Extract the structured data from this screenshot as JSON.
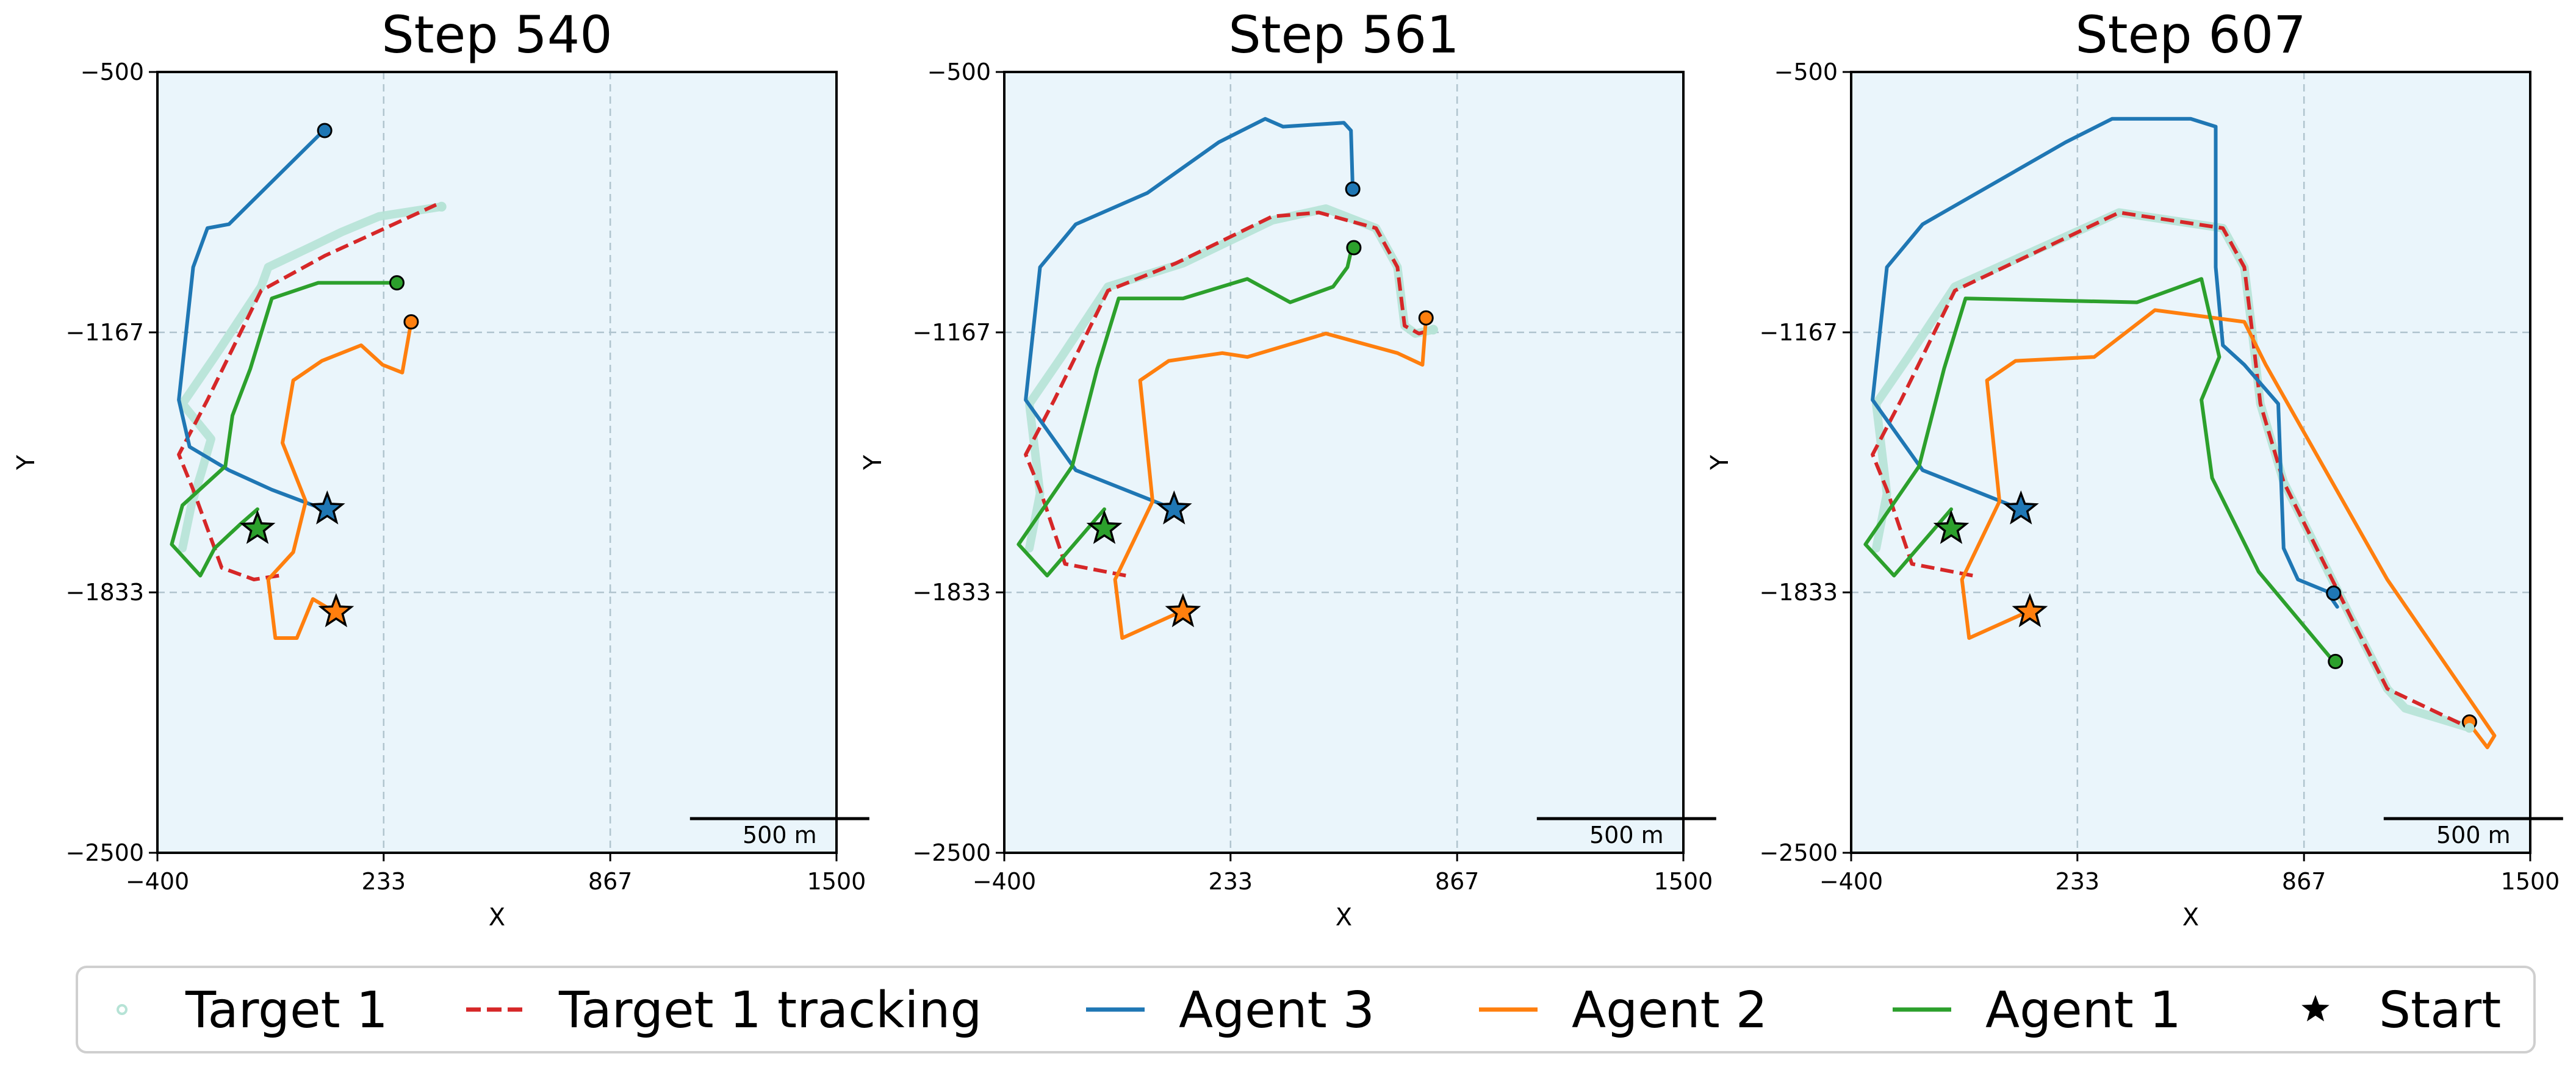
{
  "chart_data": [
    {
      "type": "line",
      "title": "Step 540",
      "xlabel": "X",
      "ylabel": "Y",
      "xlim": [
        -400,
        1500
      ],
      "ylim": [
        -2500,
        -500
      ],
      "xticks": [
        -400,
        233,
        867,
        1500
      ],
      "yticks": [
        -500,
        -1167,
        -1833,
        -2500
      ],
      "xtick_labels": [
        "−400",
        "233",
        "867",
        "1500"
      ],
      "ytick_labels": [
        "−500",
        "−1167",
        "−1833",
        "−2500"
      ],
      "grid": true,
      "scalebar_label": "500 m",
      "series": [
        {
          "name": "Target 1",
          "role": "target",
          "points": [
            [
              -330,
              -1720
            ],
            [
              -305,
              -1610
            ],
            [
              -275,
              -1520
            ],
            [
              -250,
              -1440
            ],
            [
              -330,
              -1350
            ],
            [
              -240,
              -1230
            ],
            [
              -110,
              -1050
            ],
            [
              -90,
              -1000
            ],
            [
              25,
              -950
            ],
            [
              115,
              -910
            ],
            [
              220,
              -870
            ],
            [
              395,
              -845
            ]
          ]
        },
        {
          "name": "Target 1 tracking",
          "role": "tracking",
          "points": [
            [
              -60,
              -1790
            ],
            [
              -130,
              -1800
            ],
            [
              -220,
              -1770
            ],
            [
              -300,
              -1570
            ],
            [
              -340,
              -1480
            ],
            [
              -260,
              -1340
            ],
            [
              -110,
              -1060
            ],
            [
              70,
              -970
            ],
            [
              190,
              -920
            ],
            [
              380,
              -840
            ]
          ]
        },
        {
          "name": "Agent 3",
          "role": "agent",
          "points": [
            [
              65,
              -1620
            ],
            [
              -80,
              -1570
            ],
            [
              -200,
              -1520
            ],
            [
              -310,
              -1460
            ],
            [
              -340,
              -1340
            ],
            [
              -300,
              -1000
            ],
            [
              -260,
              -900
            ],
            [
              -200,
              -890
            ],
            [
              65,
              -650
            ]
          ]
        },
        {
          "name": "Agent 2",
          "role": "agent",
          "points": [
            [
              90,
              -1880
            ],
            [
              35,
              -1850
            ],
            [
              -10,
              -1950
            ],
            [
              -70,
              -1950
            ],
            [
              -90,
              -1800
            ],
            [
              -20,
              -1730
            ],
            [
              15,
              -1600
            ],
            [
              -50,
              -1450
            ],
            [
              -20,
              -1290
            ],
            [
              60,
              -1240
            ],
            [
              170,
              -1200
            ],
            [
              230,
              -1250
            ],
            [
              285,
              -1270
            ],
            [
              310,
              -1140
            ]
          ]
        },
        {
          "name": "Agent 1",
          "role": "agent",
          "points": [
            [
              -120,
              -1620
            ],
            [
              -170,
              -1660
            ],
            [
              -240,
              -1720
            ],
            [
              -280,
              -1790
            ],
            [
              -360,
              -1710
            ],
            [
              -330,
              -1610
            ],
            [
              -210,
              -1510
            ],
            [
              -190,
              -1380
            ],
            [
              -140,
              -1260
            ],
            [
              -80,
              -1080
            ],
            [
              50,
              -1040
            ],
            [
              200,
              -1040
            ],
            [
              205,
              -1040
            ],
            [
              270,
              -1040
            ]
          ]
        }
      ],
      "end_points": {
        "Agent 3": [
          68,
          -650
        ],
        "Agent 2": [
          310,
          -1140
        ],
        "Agent 1": [
          270,
          -1040
        ],
        "Target 1": [
          395,
          -845
        ]
      },
      "start_points": {
        "Agent 3": [
          75,
          -1620
        ],
        "Agent 2": [
          100,
          -1883
        ],
        "Agent 1": [
          -120,
          -1670
        ]
      }
    },
    {
      "type": "line",
      "title": "Step 561",
      "xlabel": "X",
      "ylabel": "Y",
      "xlim": [
        -400,
        1500
      ],
      "ylim": [
        -2500,
        -500
      ],
      "xticks": [
        -400,
        233,
        867,
        1500
      ],
      "yticks": [
        -500,
        -1167,
        -1833,
        -2500
      ],
      "xtick_labels": [
        "−400",
        "233",
        "867",
        "1500"
      ],
      "ytick_labels": [
        "−500",
        "−1167",
        "−1833",
        "−2500"
      ],
      "grid": true,
      "scalebar_label": "500 m",
      "series": [
        {
          "name": "Target 1",
          "role": "target",
          "points": [
            [
              -330,
              -1720
            ],
            [
              -300,
              -1580
            ],
            [
              -330,
              -1350
            ],
            [
              -240,
              -1230
            ],
            [
              -110,
              -1050
            ],
            [
              100,
              -990
            ],
            [
              350,
              -880
            ],
            [
              500,
              -850
            ],
            [
              640,
              -900
            ],
            [
              700,
              -1000
            ],
            [
              720,
              -1150
            ],
            [
              750,
              -1170
            ],
            [
              800,
              -1160
            ]
          ]
        },
        {
          "name": "Target 1 tracking",
          "role": "tracking",
          "points": [
            [
              -60,
              -1790
            ],
            [
              -230,
              -1760
            ],
            [
              -300,
              -1570
            ],
            [
              -340,
              -1480
            ],
            [
              -260,
              -1340
            ],
            [
              -110,
              -1060
            ],
            [
              80,
              -990
            ],
            [
              350,
              -870
            ],
            [
              480,
              -860
            ],
            [
              640,
              -900
            ],
            [
              700,
              -1000
            ],
            [
              720,
              -1150
            ],
            [
              760,
              -1170
            ],
            [
              800,
              -1160
            ]
          ]
        },
        {
          "name": "Agent 3",
          "role": "agent",
          "points": [
            [
              75,
              -1620
            ],
            [
              -200,
              -1520
            ],
            [
              -340,
              -1340
            ],
            [
              -300,
              -1000
            ],
            [
              -200,
              -890
            ],
            [
              0,
              -810
            ],
            [
              200,
              -680
            ],
            [
              330,
              -620
            ],
            [
              380,
              -640
            ],
            [
              550,
              -630
            ],
            [
              570,
              -650
            ],
            [
              575,
              -800
            ]
          ]
        },
        {
          "name": "Agent 2",
          "role": "agent",
          "points": [
            [
              100,
              -1880
            ],
            [
              -70,
              -1950
            ],
            [
              -90,
              -1800
            ],
            [
              15,
              -1600
            ],
            [
              -20,
              -1290
            ],
            [
              60,
              -1240
            ],
            [
              210,
              -1220
            ],
            [
              280,
              -1230
            ],
            [
              500,
              -1170
            ],
            [
              700,
              -1220
            ],
            [
              770,
              -1250
            ],
            [
              780,
              -1130
            ]
          ]
        },
        {
          "name": "Agent 1",
          "role": "agent",
          "points": [
            [
              -120,
              -1620
            ],
            [
              -280,
              -1790
            ],
            [
              -360,
              -1710
            ],
            [
              -210,
              -1510
            ],
            [
              -140,
              -1260
            ],
            [
              -80,
              -1080
            ],
            [
              100,
              -1080
            ],
            [
              280,
              -1030
            ],
            [
              400,
              -1090
            ],
            [
              520,
              -1050
            ],
            [
              560,
              -1000
            ],
            [
              570,
              -960
            ]
          ]
        }
      ],
      "end_points": {
        "Agent 3": [
          575,
          -800
        ],
        "Agent 2": [
          780,
          -1130
        ],
        "Agent 1": [
          578,
          -950
        ],
        "Target 1": [
          800,
          -1160
        ]
      },
      "start_points": {
        "Agent 3": [
          75,
          -1620
        ],
        "Agent 2": [
          100,
          -1883
        ],
        "Agent 1": [
          -120,
          -1670
        ]
      }
    },
    {
      "type": "line",
      "title": "Step 607",
      "xlabel": "X",
      "ylabel": "Y",
      "xlim": [
        -400,
        1500
      ],
      "ylim": [
        -2500,
        -500
      ],
      "xticks": [
        -400,
        233,
        867,
        1500
      ],
      "yticks": [
        -500,
        -1167,
        -1833,
        -2500
      ],
      "xtick_labels": [
        "−400",
        "233",
        "867",
        "1500"
      ],
      "ytick_labels": [
        "−500",
        "−1167",
        "−1833",
        "−2500"
      ],
      "grid": true,
      "scalebar_label": "500 m",
      "series": [
        {
          "name": "Target 1",
          "role": "target",
          "points": [
            [
              -330,
              -1720
            ],
            [
              -300,
              -1580
            ],
            [
              -330,
              -1350
            ],
            [
              -240,
              -1230
            ],
            [
              -110,
              -1050
            ],
            [
              350,
              -860
            ],
            [
              640,
              -900
            ],
            [
              700,
              -1000
            ],
            [
              720,
              -1150
            ],
            [
              745,
              -1350
            ],
            [
              810,
              -1550
            ],
            [
              1000,
              -1900
            ],
            [
              1100,
              -2080
            ],
            [
              1150,
              -2130
            ],
            [
              1330,
              -2180
            ]
          ]
        },
        {
          "name": "Target 1 tracking",
          "role": "tracking",
          "points": [
            [
              -60,
              -1790
            ],
            [
              -230,
              -1760
            ],
            [
              -300,
              -1570
            ],
            [
              -340,
              -1480
            ],
            [
              -260,
              -1340
            ],
            [
              -110,
              -1060
            ],
            [
              350,
              -860
            ],
            [
              640,
              -900
            ],
            [
              700,
              -1000
            ],
            [
              720,
              -1150
            ],
            [
              745,
              -1350
            ],
            [
              810,
              -1550
            ],
            [
              1000,
              -1900
            ],
            [
              1100,
              -2080
            ],
            [
              1330,
              -2180
            ]
          ]
        },
        {
          "name": "Agent 3",
          "role": "agent",
          "points": [
            [
              75,
              -1620
            ],
            [
              -200,
              -1520
            ],
            [
              -340,
              -1340
            ],
            [
              -300,
              -1000
            ],
            [
              -200,
              -890
            ],
            [
              200,
              -680
            ],
            [
              330,
              -620
            ],
            [
              550,
              -620
            ],
            [
              620,
              -640
            ],
            [
              620,
              -1000
            ],
            [
              640,
              -1200
            ],
            [
              700,
              -1250
            ],
            [
              795,
              -1350
            ],
            [
              810,
              -1720
            ],
            [
              850,
              -1800
            ],
            [
              930,
              -1830
            ],
            [
              960,
              -1870
            ]
          ]
        },
        {
          "name": "Agent 2",
          "role": "agent",
          "points": [
            [
              100,
              -1880
            ],
            [
              -70,
              -1950
            ],
            [
              -90,
              -1800
            ],
            [
              15,
              -1600
            ],
            [
              -20,
              -1290
            ],
            [
              60,
              -1240
            ],
            [
              280,
              -1230
            ],
            [
              450,
              -1110
            ],
            [
              700,
              -1140
            ],
            [
              760,
              -1250
            ],
            [
              1100,
              -1800
            ],
            [
              1400,
              -2200
            ],
            [
              1380,
              -2230
            ],
            [
              1330,
              -2170
            ]
          ]
        },
        {
          "name": "Agent 1",
          "role": "agent",
          "points": [
            [
              -120,
              -1620
            ],
            [
              -280,
              -1790
            ],
            [
              -360,
              -1710
            ],
            [
              -210,
              -1510
            ],
            [
              -140,
              -1260
            ],
            [
              -80,
              -1080
            ],
            [
              400,
              -1090
            ],
            [
              580,
              -1030
            ],
            [
              630,
              -1230
            ],
            [
              580,
              -1340
            ],
            [
              610,
              -1540
            ],
            [
              740,
              -1780
            ],
            [
              950,
              -2010
            ]
          ]
        }
      ],
      "end_points": {
        "Agent 3": [
          950,
          -1835
        ],
        "Agent 2": [
          1330,
          -2165
        ],
        "Agent 1": [
          955,
          -2010
        ],
        "Target 1": [
          1330,
          -2180
        ]
      },
      "start_points": {
        "Agent 3": [
          75,
          -1620
        ],
        "Agent 2": [
          100,
          -1883
        ],
        "Agent 1": [
          -120,
          -1670
        ]
      }
    }
  ],
  "legend": {
    "position": "bottom",
    "entries": [
      {
        "label": "Target 1",
        "kind": "dot",
        "color": "#b6e3d6"
      },
      {
        "label": "Target 1 tracking",
        "kind": "dash",
        "color": "#d62728"
      },
      {
        "label": "Agent 3",
        "kind": "line",
        "color": "#1f77b4"
      },
      {
        "label": "Agent 2",
        "kind": "line",
        "color": "#ff7f0e"
      },
      {
        "label": "Agent 1",
        "kind": "line",
        "color": "#2ca02c"
      },
      {
        "label": "Start",
        "kind": "star",
        "color": "#000000"
      }
    ]
  },
  "colors": {
    "Target 1": "#b6e3d6",
    "Target 1 tracking": "#d62728",
    "Agent 3": "#1f77b4",
    "Agent 2": "#ff7f0e",
    "Agent 1": "#2ca02c",
    "plot_bg": "#eaf5fb"
  }
}
